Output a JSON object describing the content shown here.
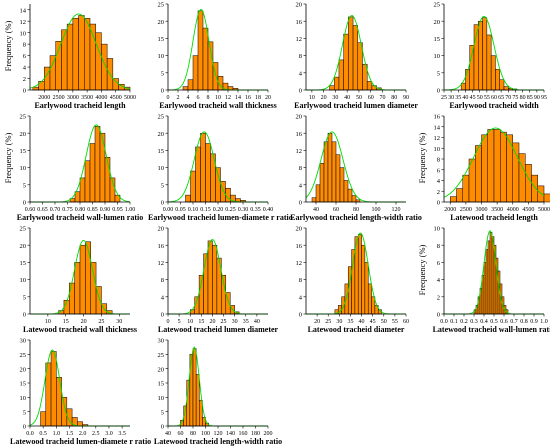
{
  "colors": {
    "bar": "#ff8c00",
    "bar_edge": "#000000",
    "curve": "#00dd00",
    "axis": "#000000"
  },
  "chart_data": [
    {
      "type": "bar",
      "xlabel": "Earlywood tracheid length",
      "ylabel": "Frequency (%)",
      "xlim": [
        1500,
        5000
      ],
      "ylim": [
        0,
        15
      ],
      "xticks": [
        "2000",
        "2500",
        "3000",
        "3500",
        "4000",
        "4500",
        "5000"
      ],
      "xtick_values": [
        2000,
        2500,
        3000,
        3500,
        4000,
        4500,
        5000
      ],
      "yticks": [
        "0",
        "2",
        "4",
        "6",
        "8",
        "10",
        "12",
        "14"
      ],
      "ytick_values": [
        0,
        2,
        4,
        6,
        8,
        10,
        12,
        14
      ],
      "bin_start": 1600,
      "bin_width": 200,
      "values": [
        0.5,
        1.5,
        4,
        6,
        8.5,
        10.5,
        11.5,
        12.5,
        13,
        12.5,
        11.5,
        10,
        8,
        5.5,
        2,
        1,
        0.5
      ],
      "curve_mean": 3200,
      "curve_sd": 620
    },
    {
      "type": "bar",
      "xlabel": "Earlywood tracheid wall thickness",
      "ylabel": "",
      "xlim": [
        0,
        20
      ],
      "ylim": [
        0,
        25
      ],
      "xticks": [
        "0",
        "2",
        "4",
        "6",
        "8",
        "10",
        "12",
        "14",
        "16",
        "18",
        "20"
      ],
      "xtick_values": [
        0,
        2,
        4,
        6,
        8,
        10,
        12,
        14,
        16,
        18,
        20
      ],
      "yticks": [
        "0",
        "5",
        "10",
        "15",
        "20",
        "25"
      ],
      "ytick_values": [
        0,
        5,
        10,
        15,
        20,
        25
      ],
      "bin_start": 3,
      "bin_width": 1,
      "values": [
        1,
        3,
        10,
        23,
        18,
        14,
        8,
        4,
        2,
        1,
        0.5
      ],
      "curve_mean": 6.6,
      "curve_sd": 1.6
    },
    {
      "type": "bar",
      "xlabel": "Earlywood tracheid lumen diameter",
      "ylabel": "",
      "xlim": [
        5,
        90
      ],
      "ylim": [
        0,
        20
      ],
      "xticks": [
        "10",
        "20",
        "30",
        "40",
        "50",
        "60",
        "70",
        "80",
        "90"
      ],
      "xtick_values": [
        10,
        20,
        30,
        40,
        50,
        60,
        70,
        80,
        90
      ],
      "yticks": [
        "0",
        "4",
        "8",
        "12",
        "16",
        "20"
      ],
      "ytick_values": [
        0,
        4,
        8,
        12,
        16,
        20
      ],
      "bin_start": 25,
      "bin_width": 4,
      "values": [
        1,
        3,
        7,
        13,
        17,
        15,
        11,
        6,
        2,
        1,
        0.5
      ],
      "curve_mean": 44,
      "curve_sd": 8
    },
    {
      "type": "bar",
      "xlabel": "Earlywood tracheid width",
      "ylabel": "",
      "xlim": [
        25,
        95
      ],
      "ylim": [
        0,
        25
      ],
      "xticks": [
        "25",
        "30",
        "35",
        "40",
        "45",
        "50",
        "55",
        "60",
        "65",
        "70",
        "75",
        "80",
        "85",
        "90",
        "95"
      ],
      "xtick_values": [
        25,
        30,
        35,
        40,
        45,
        50,
        55,
        60,
        65,
        70,
        75,
        80,
        85,
        90,
        95
      ],
      "yticks": [
        "0",
        "5",
        "10",
        "15",
        "20",
        "25"
      ],
      "ytick_values": [
        0,
        5,
        10,
        15,
        20,
        25
      ],
      "bin_start": 37,
      "bin_width": 3,
      "values": [
        2,
        6,
        13,
        19,
        20,
        21,
        16,
        10,
        6,
        3,
        1,
        0.5,
        0.3
      ],
      "curve_mean": 53,
      "curve_sd": 7
    },
    {
      "type": "bar",
      "xlabel": "Earlywood tracheid wall-lumen ratio",
      "ylabel": "Frequency (%)",
      "xlim": [
        0.6,
        1.0
      ],
      "ylim": [
        0,
        25
      ],
      "xticks": [
        "0.60",
        "0.65",
        "0.70",
        "0.75",
        "0.80",
        "0.85",
        "0.90",
        "0.95",
        "1.00"
      ],
      "xtick_values": [
        0.6,
        0.65,
        0.7,
        0.75,
        0.8,
        0.85,
        0.9,
        0.95,
        1.0
      ],
      "yticks": [
        "0",
        "5",
        "10",
        "15",
        "20",
        "25"
      ],
      "ytick_values": [
        0,
        5,
        10,
        15,
        20,
        25
      ],
      "bin_start": 0.76,
      "bin_width": 0.02,
      "values": [
        1,
        3,
        7,
        12,
        17,
        22,
        20,
        13,
        7,
        2
      ],
      "curve_mean": 0.865,
      "curve_sd": 0.04
    },
    {
      "type": "bar",
      "xlabel": "Earlywood tracheid lumen-diamete  r ratio",
      "ylabel": "",
      "xlim": [
        0,
        0.4
      ],
      "ylim": [
        0,
        25
      ],
      "xticks": [
        "0.00",
        "0.05",
        "0.10",
        "0.15",
        "0.20",
        "0.25",
        "0.30",
        "0.35",
        "0.40"
      ],
      "xtick_values": [
        0,
        0.05,
        0.1,
        0.15,
        0.2,
        0.25,
        0.3,
        0.35,
        0.4
      ],
      "yticks": [
        "0",
        "5",
        "10",
        "15",
        "20",
        "25"
      ],
      "ytick_values": [
        0,
        5,
        10,
        15,
        20,
        25
      ],
      "bin_start": 0.07,
      "bin_width": 0.02,
      "values": [
        2,
        9,
        16,
        20,
        17,
        14,
        10,
        6,
        4,
        2,
        1,
        0.5
      ],
      "curve_mean": 0.145,
      "curve_sd": 0.04
    },
    {
      "type": "bar",
      "xlabel": "Earlywood tracheid length-width ratio",
      "ylabel": "",
      "xlim": [
        30,
        130
      ],
      "ylim": [
        0,
        20
      ],
      "xticks": [
        "40",
        "60",
        "80",
        "100",
        "120"
      ],
      "xtick_values": [
        40,
        60,
        80,
        100,
        120
      ],
      "yticks": [
        "0",
        "4",
        "8",
        "12",
        "16",
        "20"
      ],
      "ytick_values": [
        0,
        4,
        8,
        12,
        16,
        20
      ],
      "bin_start": 36,
      "bin_width": 4,
      "values": [
        1,
        4,
        9,
        14,
        16,
        14,
        11,
        8,
        5,
        3,
        1.5,
        0.5
      ],
      "curve_mean": 56,
      "curve_sd": 11
    },
    {
      "type": "bar",
      "xlabel": "Latewood tracheid length",
      "ylabel": "Frequency (%)",
      "xlim": [
        1800,
        5000
      ],
      "ylim": [
        0,
        16
      ],
      "xticks": [
        "2000",
        "2500",
        "3000",
        "3500",
        "4000",
        "4500",
        "5000"
      ],
      "xtick_values": [
        2000,
        2500,
        3000,
        3500,
        4000,
        4500,
        5000
      ],
      "yticks": [
        "0",
        "2",
        "4",
        "6",
        "8",
        "10",
        "12",
        "14",
        "16"
      ],
      "ytick_values": [
        0,
        2,
        4,
        6,
        8,
        10,
        12,
        14,
        16
      ],
      "bin_start": 2000,
      "bin_width": 200,
      "values": [
        1,
        2.5,
        5,
        8,
        10.5,
        12.5,
        13.5,
        13.5,
        13,
        12.5,
        11,
        9,
        7,
        5,
        3,
        1.5
      ],
      "curve_mean": 3450,
      "curve_sd": 700
    },
    {
      "type": "bar",
      "xlabel": "Latewood tracheid wall thickness",
      "ylabel": "",
      "xlim": [
        5,
        33
      ],
      "ylim": [
        0,
        25
      ],
      "xticks": [
        "10",
        "15",
        "20",
        "25",
        "30"
      ],
      "xtick_values": [
        10,
        15,
        20,
        25,
        30
      ],
      "yticks": [
        "0",
        "5",
        "10",
        "15",
        "20",
        "25"
      ],
      "ytick_values": [
        0,
        5,
        10,
        15,
        20,
        25
      ],
      "bin_start": 13,
      "bin_width": 1.5,
      "values": [
        1,
        4,
        9,
        15,
        20,
        21,
        15,
        8,
        3,
        1
      ],
      "curve_mean": 20,
      "curve_sd": 2.5
    },
    {
      "type": "bar",
      "xlabel": "Latewood tracheid lumen diameter",
      "ylabel": "",
      "xlim": [
        0,
        45
      ],
      "ylim": [
        0,
        20
      ],
      "xticks": [
        "0",
        "5",
        "10",
        "15",
        "20",
        "25",
        "30",
        "35",
        "40"
      ],
      "xtick_values": [
        0,
        5,
        10,
        15,
        20,
        25,
        30,
        35,
        40
      ],
      "yticks": [
        "0",
        "4",
        "8",
        "12",
        "16",
        "20"
      ],
      "ytick_values": [
        0,
        4,
        8,
        12,
        16,
        20
      ],
      "bin_start": 10,
      "bin_width": 2,
      "values": [
        1,
        4,
        9,
        14,
        17,
        16,
        13,
        9,
        5,
        2,
        0.5
      ],
      "curve_mean": 20,
      "curve_sd": 3.8
    },
    {
      "type": "bar",
      "xlabel": "Latewood tracheid diameter",
      "ylabel": "",
      "xlim": [
        15,
        60
      ],
      "ylim": [
        0,
        20
      ],
      "xticks": [
        "20",
        "25",
        "30",
        "35",
        "40",
        "45",
        "50",
        "55",
        "60"
      ],
      "xtick_values": [
        20,
        25,
        30,
        35,
        40,
        45,
        50,
        55,
        60
      ],
      "yticks": [
        "0",
        "4",
        "8",
        "12",
        "16",
        "20"
      ],
      "ytick_values": [
        0,
        4,
        8,
        12,
        16,
        20
      ],
      "bin_start": 28,
      "bin_width": 1.5,
      "values": [
        1,
        2,
        4,
        7,
        11,
        15,
        18,
        18.5,
        16,
        12,
        7,
        4,
        2,
        1
      ],
      "curve_mean": 39.5,
      "curve_sd": 3.5
    },
    {
      "type": "bar",
      "xlabel": "Latewood tracheid wall-lumen ratio",
      "ylabel": "Frequency (%)",
      "xlim": [
        0,
        1.0
      ],
      "ylim": [
        0,
        10
      ],
      "xticks": [
        "0.0",
        "0.1",
        "0.2",
        "0.3",
        "0.4",
        "0.5",
        "0.6",
        "0.7",
        "0.8",
        "0.9",
        "1.0"
      ],
      "xtick_values": [
        0,
        0.1,
        0.2,
        0.3,
        0.4,
        0.5,
        0.6,
        0.7,
        0.8,
        0.9,
        1.0
      ],
      "yticks": [
        "0",
        "2",
        "4",
        "6",
        "8",
        "10"
      ],
      "ytick_values": [
        0,
        2,
        4,
        6,
        8,
        10
      ],
      "bin_start": 0.3,
      "bin_width": 0.02,
      "values": [
        0.5,
        1,
        2,
        3,
        4.5,
        6,
        7.5,
        8.5,
        9.5,
        9,
        8,
        6.5,
        5,
        3.5,
        2,
        1,
        0.5
      ],
      "curve_mean": 0.46,
      "curve_sd": 0.06
    },
    {
      "type": "bar",
      "xlabel": "Latewood tracheid lumen-diamete  r ratio",
      "ylabel": "",
      "xlim": [
        0,
        3.8
      ],
      "ylim": [
        0,
        30
      ],
      "xticks": [
        "0.0",
        "0.5",
        "1.0",
        "1.5",
        "2.0",
        "2.5",
        "3.0",
        "3.5"
      ],
      "xtick_values": [
        0,
        0.5,
        1,
        1.5,
        2,
        2.5,
        3,
        3.5
      ],
      "yticks": [
        "0",
        "5",
        "10",
        "15",
        "20",
        "25",
        "30"
      ],
      "ytick_values": [
        0,
        5,
        10,
        15,
        20,
        25,
        30
      ],
      "bin_start": 0.4,
      "bin_width": 0.2,
      "values": [
        5,
        22,
        26,
        17,
        10,
        6,
        3,
        1.5,
        0.5
      ],
      "curve_mean": 0.85,
      "curve_sd": 0.28
    },
    {
      "type": "bar",
      "xlabel": "Latewood tracheid length-width ratio",
      "ylabel": "",
      "xlim": [
        40,
        200
      ],
      "ylim": [
        0,
        30
      ],
      "xticks": [
        "40",
        "60",
        "80",
        "100",
        "120",
        "140",
        "160",
        "180",
        "200"
      ],
      "xtick_values": [
        40,
        60,
        80,
        100,
        120,
        140,
        160,
        180,
        200
      ],
      "yticks": [
        "0",
        "5",
        "10",
        "15",
        "20",
        "25",
        "30"
      ],
      "ytick_values": [
        0,
        5,
        10,
        15,
        20,
        25,
        30
      ],
      "bin_start": 60,
      "bin_width": 5,
      "values": [
        2,
        7,
        16,
        25,
        27,
        18,
        9,
        3,
        1
      ],
      "curve_mean": 82,
      "curve_sd": 8
    }
  ]
}
